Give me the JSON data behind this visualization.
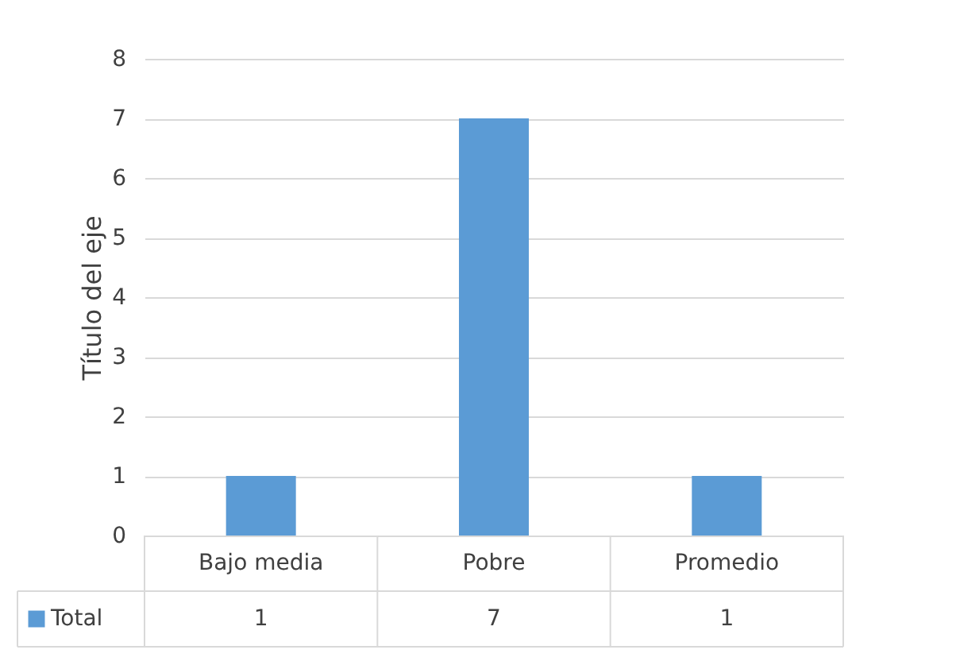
{
  "chart_data": {
    "type": "bar",
    "ylabel": "Título del eje",
    "categories": [
      "Bajo media",
      "Pobre",
      "Promedio"
    ],
    "series": [
      {
        "name": "Total",
        "color": "#5b9bd5",
        "values": [
          1,
          7,
          1
        ]
      }
    ],
    "ylim": [
      0,
      8
    ],
    "yticks": [
      0,
      1,
      2,
      3,
      4,
      5,
      6,
      7,
      8
    ],
    "grid": "y",
    "data_labels": true,
    "legend": "bottom"
  }
}
